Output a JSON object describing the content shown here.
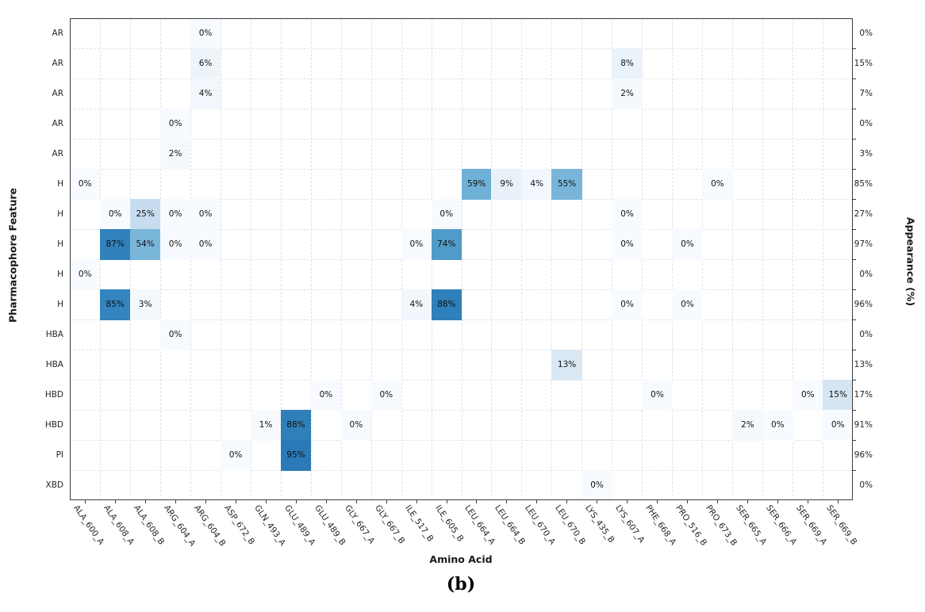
{
  "figure": {
    "caption": "(b)"
  },
  "chart_data": {
    "type": "heatmap",
    "title": "",
    "xlabel": "Amino Acid",
    "ylabel_left": "Pharmacophore Feature",
    "ylabel_right": "Appearance (%)",
    "value_suffix": "%",
    "grid": "dashed",
    "columns": [
      "ALA_600_A",
      "ALA_608_A",
      "ALA_608_B",
      "ARG_604_A",
      "ARG_604_B",
      "ASP_672_B",
      "GLN_493_A",
      "GLU_489_A",
      "GLU_489_B",
      "GLY_667_A",
      "GLY_667_B",
      "ILE_517_B",
      "ILE_605_B",
      "LEU_664_A",
      "LEU_664_B",
      "LEU_670_A",
      "LEU_670_B",
      "LYS_435_B",
      "LYS_607_A",
      "PHE_668_A",
      "PRO_516_B",
      "PRO_673_B",
      "SER_665_A",
      "SER_666_A",
      "SER_669_A",
      "SER_669_B"
    ],
    "rows": [
      "AR",
      "AR",
      "AR",
      "AR",
      "AR",
      "H",
      "H",
      "H",
      "H",
      "H",
      "HBA",
      "HBA",
      "HBD",
      "HBD",
      "PI",
      "XBD"
    ],
    "right_axis_values": [
      "0%",
      "15%",
      "7%",
      "0%",
      "3%",
      "85%",
      "27%",
      "97%",
      "0%",
      "96%",
      "0%",
      "13%",
      "17%",
      "91%",
      "96%",
      "0%"
    ],
    "cells": [
      {
        "r": 0,
        "c": 4,
        "v": 0
      },
      {
        "r": 1,
        "c": 4,
        "v": 6
      },
      {
        "r": 1,
        "c": 18,
        "v": 8
      },
      {
        "r": 2,
        "c": 4,
        "v": 4
      },
      {
        "r": 2,
        "c": 18,
        "v": 2
      },
      {
        "r": 3,
        "c": 3,
        "v": 0
      },
      {
        "r": 4,
        "c": 3,
        "v": 2
      },
      {
        "r": 5,
        "c": 0,
        "v": 0
      },
      {
        "r": 5,
        "c": 13,
        "v": 59
      },
      {
        "r": 5,
        "c": 14,
        "v": 9
      },
      {
        "r": 5,
        "c": 15,
        "v": 4
      },
      {
        "r": 5,
        "c": 16,
        "v": 55
      },
      {
        "r": 5,
        "c": 21,
        "v": 0
      },
      {
        "r": 6,
        "c": 1,
        "v": 0
      },
      {
        "r": 6,
        "c": 2,
        "v": 25
      },
      {
        "r": 6,
        "c": 3,
        "v": 0
      },
      {
        "r": 6,
        "c": 4,
        "v": 0
      },
      {
        "r": 6,
        "c": 12,
        "v": 0
      },
      {
        "r": 6,
        "c": 18,
        "v": 0
      },
      {
        "r": 7,
        "c": 1,
        "v": 87
      },
      {
        "r": 7,
        "c": 2,
        "v": 54
      },
      {
        "r": 7,
        "c": 3,
        "v": 0
      },
      {
        "r": 7,
        "c": 4,
        "v": 0
      },
      {
        "r": 7,
        "c": 11,
        "v": 0
      },
      {
        "r": 7,
        "c": 12,
        "v": 74
      },
      {
        "r": 7,
        "c": 18,
        "v": 0
      },
      {
        "r": 7,
        "c": 20,
        "v": 0
      },
      {
        "r": 8,
        "c": 0,
        "v": 0
      },
      {
        "r": 9,
        "c": 1,
        "v": 85
      },
      {
        "r": 9,
        "c": 2,
        "v": 3
      },
      {
        "r": 9,
        "c": 11,
        "v": 4
      },
      {
        "r": 9,
        "c": 12,
        "v": 88
      },
      {
        "r": 9,
        "c": 18,
        "v": 0
      },
      {
        "r": 9,
        "c": 20,
        "v": 0
      },
      {
        "r": 10,
        "c": 3,
        "v": 0
      },
      {
        "r": 11,
        "c": 16,
        "v": 13
      },
      {
        "r": 12,
        "c": 8,
        "v": 0
      },
      {
        "r": 12,
        "c": 10,
        "v": 0
      },
      {
        "r": 12,
        "c": 19,
        "v": 0
      },
      {
        "r": 12,
        "c": 24,
        "v": 0
      },
      {
        "r": 12,
        "c": 25,
        "v": 15
      },
      {
        "r": 13,
        "c": 6,
        "v": 1
      },
      {
        "r": 13,
        "c": 7,
        "v": 88
      },
      {
        "r": 13,
        "c": 9,
        "v": 0
      },
      {
        "r": 13,
        "c": 22,
        "v": 2
      },
      {
        "r": 13,
        "c": 23,
        "v": 0
      },
      {
        "r": 13,
        "c": 25,
        "v": 0
      },
      {
        "r": 14,
        "c": 5,
        "v": 0
      },
      {
        "r": 14,
        "c": 7,
        "v": 95
      },
      {
        "r": 15,
        "c": 17,
        "v": 0
      }
    ],
    "colors": {
      "cell_text": "#111111",
      "gridline": "#e2e2e2",
      "axis_border": "#3c3c3c",
      "colormap_anchors": [
        [
          0,
          "#f7fbff"
        ],
        [
          2,
          "#f4f9fd"
        ],
        [
          5,
          "#eff6fb"
        ],
        [
          9,
          "#e8f1f9"
        ],
        [
          13,
          "#dae8f4"
        ],
        [
          15,
          "#d6e5f2"
        ],
        [
          25,
          "#c7ddef"
        ],
        [
          54,
          "#7ab6d9"
        ],
        [
          59,
          "#6fb0d6"
        ],
        [
          74,
          "#4f9cc8"
        ],
        [
          85,
          "#3484bf"
        ],
        [
          88,
          "#2f80ba"
        ],
        [
          95,
          "#2b7ab7"
        ],
        [
          100,
          "#2979b6"
        ]
      ]
    }
  }
}
